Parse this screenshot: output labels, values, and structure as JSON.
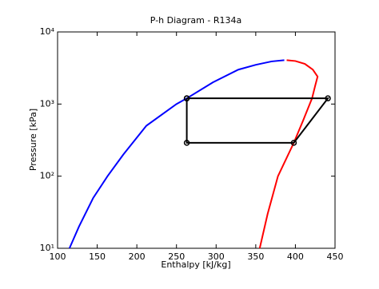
{
  "chart_data": {
    "type": "line",
    "title": "P-h Diagram - R134a",
    "xlabel": "Enthalpy [kJ/kg]",
    "ylabel": "Pressure [kPa]",
    "xlim": [
      100,
      450
    ],
    "xticks": [
      100,
      150,
      200,
      250,
      300,
      350,
      400,
      450
    ],
    "ylim": [
      10,
      10000
    ],
    "yscale": "log",
    "yticks": [
      {
        "value": 10,
        "label": "10¹"
      },
      {
        "value": 100,
        "label": "10²"
      },
      {
        "value": 1000,
        "label": "10³"
      },
      {
        "value": 10000,
        "label": "10⁴"
      }
    ],
    "series": [
      {
        "color": "#0000ff",
        "markers": false,
        "x": [
          115,
          127,
          145,
          163,
          183,
          212,
          250,
          263,
          296,
          328,
          350,
          370,
          386
        ],
        "values": [
          10,
          20,
          50,
          100,
          200,
          500,
          1000,
          1200,
          2000,
          3000,
          3500,
          3900,
          4059
        ]
      },
      {
        "color": "#ff0000",
        "markers": false,
        "x": [
          389,
          400,
          412,
          422,
          428,
          425,
          421,
          410,
          398,
          388,
          378,
          365,
          355
        ],
        "values": [
          4059,
          3950,
          3600,
          3000,
          2400,
          1800,
          1200,
          600,
          290,
          170,
          100,
          30,
          10
        ]
      },
      {
        "color": "#000000",
        "markers": true,
        "x": [
          263,
          441,
          398,
          263,
          263
        ],
        "values": [
          1200,
          1200,
          290,
          290,
          1200
        ]
      }
    ]
  }
}
